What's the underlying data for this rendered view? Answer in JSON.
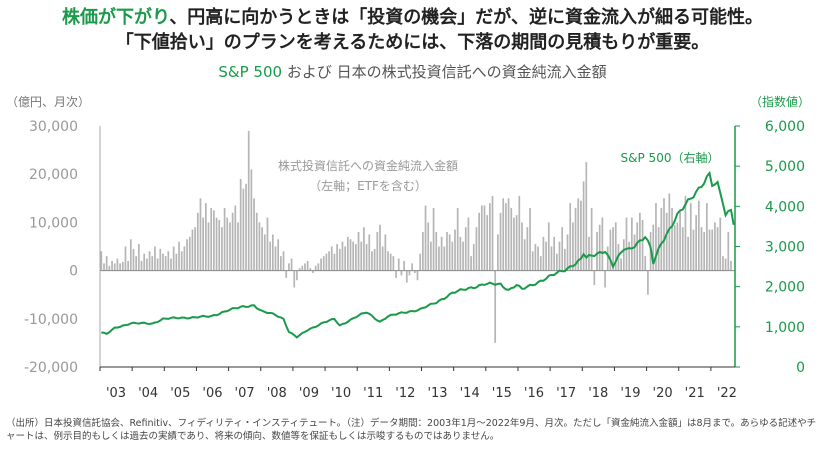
{
  "headline": {
    "line1_accent": "株価が下がり",
    "line1_rest": "、円高に向かうときは「投資の機会」だが、逆に資金流入が細る可能性。",
    "line2": "「下値拾い」のプランを考えるためには、下落の期間の見積もりが重要。"
  },
  "subtitle": {
    "accent": "S&P 500",
    "rest": " および 日本の株式投資信託への資金純流入金額"
  },
  "axis_units": {
    "left": "（億円、月次）",
    "right": "（指数値）"
  },
  "footnote": "（出所）日本投資信託協会、Refinitiv、フィディリティ・インスティテュート。（注）データ期間：2003年1月〜2022年9月、月次。ただし「資金純流入金額」は8月まで。あらゆる記述やチャートは、例示目的もしくは過去の実績であり、将来の傾向、数値等を保証もしくは示唆するものではありません。",
  "colors": {
    "bar": "#b5b5b5",
    "line": "#1a9a4a",
    "axis_right": "#1a9a4a",
    "axis_left": "#999999"
  },
  "chart_data": {
    "type": "bar+line",
    "x_tick_labels": [
      "'03",
      "'04",
      "'05",
      "'06",
      "'07",
      "'08",
      "'09",
      "'10",
      "'11",
      "'12",
      "'13",
      "'14",
      "'15",
      "'16",
      "'17",
      "'18",
      "'19",
      "'20",
      "'21",
      "'22"
    ],
    "left_axis": {
      "ylim": [
        -20000,
        30000
      ],
      "ticks": [
        "30,000",
        "20,000",
        "10,000",
        "0",
        "-10,000",
        "-20,000"
      ],
      "tick_values": [
        30000,
        20000,
        10000,
        0,
        -10000,
        -20000
      ]
    },
    "right_axis": {
      "ylim": [
        0,
        6000
      ],
      "ticks": [
        "6,000",
        "5,000",
        "4,000",
        "3,000",
        "2,000",
        "1,000",
        "0"
      ],
      "tick_values": [
        6000,
        5000,
        4000,
        3000,
        2000,
        1000,
        0
      ]
    },
    "annotations": {
      "bars_label_line1": "株式投資信託への資金純流入金額",
      "bars_label_line2": "（左軸；ETFを含む）",
      "line_label": "S&P 500（右軸）"
    },
    "series": [
      {
        "name": "株式投資信託への資金純流入金額",
        "type": "bar",
        "axis": "left",
        "start": "2003-01",
        "values_monthly": [
          4000,
          1500,
          3000,
          1000,
          2000,
          1500,
          2500,
          1500,
          1800,
          5000,
          2000,
          6500,
          4500,
          3000,
          5500,
          2000,
          3500,
          2500,
          4000,
          3000,
          5000,
          2500,
          4500,
          3500,
          3000,
          4000,
          2500,
          5000,
          3500,
          6000,
          4000,
          5000,
          6500,
          7000,
          8500,
          9000,
          12000,
          15000,
          11000,
          14000,
          10000,
          13000,
          12500,
          11000,
          10500,
          9000,
          13000,
          11000,
          10000,
          12000,
          13500,
          10000,
          19000,
          17000,
          18000,
          29000,
          21000,
          15000,
          12000,
          10000,
          9000,
          7500,
          11000,
          6000,
          7500,
          5000,
          6500,
          3000,
          4000,
          -1500,
          1500,
          2500,
          -3500,
          -2000,
          500,
          1000,
          1500,
          2000,
          500,
          -500,
          1000,
          1500,
          2500,
          3000,
          3500,
          4000,
          5000,
          3500,
          5500,
          4500,
          6000,
          5000,
          7000,
          6500,
          6000,
          5500,
          8000,
          6000,
          9000,
          5500,
          7500,
          4000,
          4500,
          8000,
          9500,
          5000,
          7500,
          4000,
          3500,
          3000,
          -1500,
          2500,
          -1000,
          2000,
          -2500,
          -1000,
          1500,
          -500,
          -2000,
          3500,
          8000,
          13500,
          10000,
          6000,
          13000,
          8000,
          5000,
          7000,
          5000,
          8000,
          7500,
          6000,
          8500,
          13000,
          7000,
          6000,
          9000,
          11000,
          3000,
          5500,
          9000,
          12000,
          13500,
          13500,
          11500,
          14000,
          15500,
          -15000,
          7500,
          12000,
          15000,
          14000,
          15000,
          13000,
          11000,
          11500,
          15500,
          10000,
          6500,
          9000,
          13000,
          4000,
          5500,
          5000,
          3000,
          7000,
          6000,
          10000,
          5000,
          7000,
          3500,
          6000,
          9000,
          4500,
          7500,
          14000,
          10000,
          13000,
          15000,
          14500,
          18500,
          22500,
          7000,
          13000,
          -3000,
          8000,
          9500,
          11000,
          -3500,
          5000,
          8500,
          9000,
          10000,
          5500,
          2500,
          6500,
          11000,
          6000,
          11000,
          7500,
          10000,
          12000,
          10500,
          3000,
          -5000,
          8000,
          9500,
          14000,
          9000,
          13000,
          15000,
          12000,
          16000,
          13000,
          9500,
          10000,
          12500,
          9000,
          15500,
          7000,
          14000,
          8500,
          11500,
          14500,
          9000,
          8000,
          14000,
          8500,
          8500,
          10000,
          9000,
          11000,
          3000,
          2500,
          8000,
          2000
        ]
      },
      {
        "name": "S&P 500",
        "type": "line",
        "axis": "right",
        "anchors": [
          [
            "2003-01",
            860
          ],
          [
            "2003-03",
            820
          ],
          [
            "2003-06",
            970
          ],
          [
            "2003-12",
            1090
          ],
          [
            "2004-08",
            1080
          ],
          [
            "2004-12",
            1200
          ],
          [
            "2005-12",
            1240
          ],
          [
            "2006-06",
            1260
          ],
          [
            "2006-12",
            1410
          ],
          [
            "2007-06",
            1500
          ],
          [
            "2007-10",
            1540
          ],
          [
            "2008-01",
            1380
          ],
          [
            "2008-06",
            1300
          ],
          [
            "2008-09",
            1200
          ],
          [
            "2008-11",
            880
          ],
          [
            "2009-02",
            740
          ],
          [
            "2009-06",
            920
          ],
          [
            "2009-12",
            1110
          ],
          [
            "2010-04",
            1190
          ],
          [
            "2010-06",
            1030
          ],
          [
            "2010-12",
            1250
          ],
          [
            "2011-04",
            1360
          ],
          [
            "2011-09",
            1130
          ],
          [
            "2011-12",
            1260
          ],
          [
            "2012-06",
            1360
          ],
          [
            "2012-12",
            1430
          ],
          [
            "2013-06",
            1610
          ],
          [
            "2013-12",
            1840
          ],
          [
            "2014-06",
            1960
          ],
          [
            "2014-12",
            2060
          ],
          [
            "2015-06",
            2060
          ],
          [
            "2015-09",
            1920
          ],
          [
            "2015-12",
            2040
          ],
          [
            "2016-02",
            1930
          ],
          [
            "2016-12",
            2240
          ],
          [
            "2017-06",
            2420
          ],
          [
            "2017-12",
            2670
          ],
          [
            "2018-01",
            2820
          ],
          [
            "2018-02",
            2710
          ],
          [
            "2018-09",
            2910
          ],
          [
            "2018-12",
            2510
          ],
          [
            "2019-04",
            2940
          ],
          [
            "2019-06",
            2940
          ],
          [
            "2019-12",
            3230
          ],
          [
            "2020-02",
            2950
          ],
          [
            "2020-03",
            2580
          ],
          [
            "2020-06",
            3100
          ],
          [
            "2020-12",
            3760
          ],
          [
            "2021-06",
            4300
          ],
          [
            "2021-12",
            4770
          ],
          [
            "2022-01",
            4520
          ],
          [
            "2022-03",
            4530
          ],
          [
            "2022-05",
            4130
          ],
          [
            "2022-06",
            3790
          ],
          [
            "2022-08",
            3960
          ],
          [
            "2022-09",
            3590
          ]
        ]
      }
    ]
  }
}
